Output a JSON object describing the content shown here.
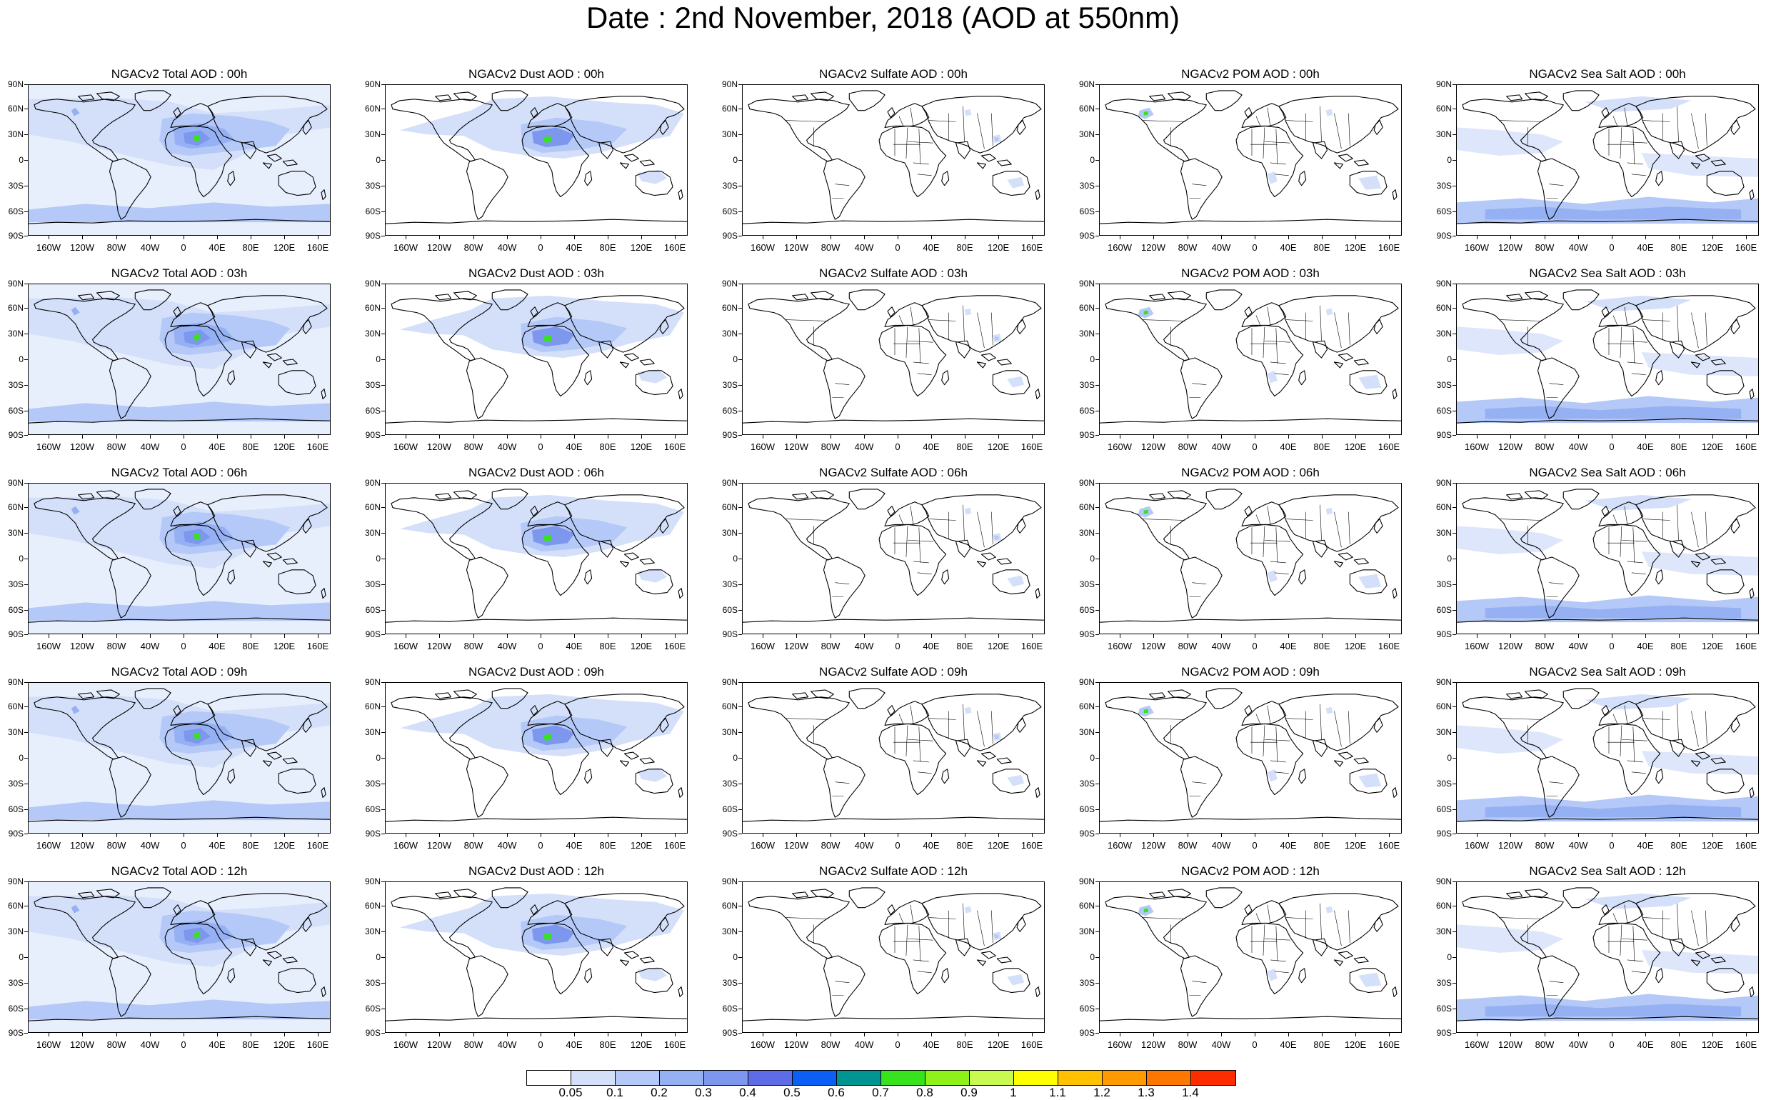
{
  "page": {
    "title": "Date : 2nd November, 2018 (AOD at 550nm)"
  },
  "panels": [
    {
      "title": "NGACv2 Total AOD : 00h",
      "species": "total"
    },
    {
      "title": "NGACv2 Dust AOD : 00h",
      "species": "dust"
    },
    {
      "title": "NGACv2 Sulfate AOD : 00h",
      "species": "sulfate"
    },
    {
      "title": "NGACv2 POM AOD : 00h",
      "species": "pom"
    },
    {
      "title": "NGACv2 Sea Salt AOD : 00h",
      "species": "seasalt"
    },
    {
      "title": "NGACv2 Total AOD : 03h",
      "species": "total"
    },
    {
      "title": "NGACv2 Dust AOD : 03h",
      "species": "dust"
    },
    {
      "title": "NGACv2 Sulfate AOD : 03h",
      "species": "sulfate"
    },
    {
      "title": "NGACv2 POM AOD : 03h",
      "species": "pom"
    },
    {
      "title": "NGACv2 Sea Salt AOD : 03h",
      "species": "seasalt"
    },
    {
      "title": "NGACv2 Total AOD : 06h",
      "species": "total"
    },
    {
      "title": "NGACv2 Dust AOD : 06h",
      "species": "dust"
    },
    {
      "title": "NGACv2 Sulfate AOD : 06h",
      "species": "sulfate"
    },
    {
      "title": "NGACv2 POM AOD : 06h",
      "species": "pom"
    },
    {
      "title": "NGACv2 Sea Salt AOD : 06h",
      "species": "seasalt"
    },
    {
      "title": "NGACv2 Total AOD : 09h",
      "species": "total"
    },
    {
      "title": "NGACv2 Dust AOD : 09h",
      "species": "dust"
    },
    {
      "title": "NGACv2 Sulfate AOD : 09h",
      "species": "sulfate"
    },
    {
      "title": "NGACv2 POM AOD : 09h",
      "species": "pom"
    },
    {
      "title": "NGACv2 Sea Salt  AOD : 09h",
      "species": "seasalt"
    },
    {
      "title": "NGACv2 Total AOD : 12h",
      "species": "total"
    },
    {
      "title": "NGACv2 Dust AOD : 12h",
      "species": "dust"
    },
    {
      "title": "NGACv2 Sulfate AOD : 12h",
      "species": "sulfate"
    },
    {
      "title": "NGACv2 POM  AOD : 12h",
      "species": "pom"
    },
    {
      "title": "NGACv2 Sea Salt  AOD : 12h",
      "species": "seasalt"
    }
  ],
  "axes": {
    "lat_labels": [
      "90N",
      "60N",
      "30N",
      "0",
      "30S",
      "60S",
      "90S"
    ],
    "lon_labels": [
      "160W",
      "120W",
      "80W",
      "40W",
      "0",
      "40E",
      "80E",
      "120E",
      "160E"
    ]
  },
  "colorbar": {
    "colors": [
      "#ffffff",
      "#d4e0fa",
      "#b4c9f7",
      "#96b1f3",
      "#7e97ee",
      "#5f6ce8",
      "#0c5ff5",
      "#009590",
      "#36e31c",
      "#8ef21a",
      "#c8fa50",
      "#ffff00",
      "#ffc100",
      "#ff9b00",
      "#ff7600",
      "#fe2d00"
    ],
    "labels": [
      "0.05",
      "0.1",
      "0.2",
      "0.3",
      "0.4",
      "0.5",
      "0.6",
      "0.7",
      "0.8",
      "0.9",
      "1",
      "1.1",
      "1.2",
      "1.3",
      "1.4"
    ]
  }
}
